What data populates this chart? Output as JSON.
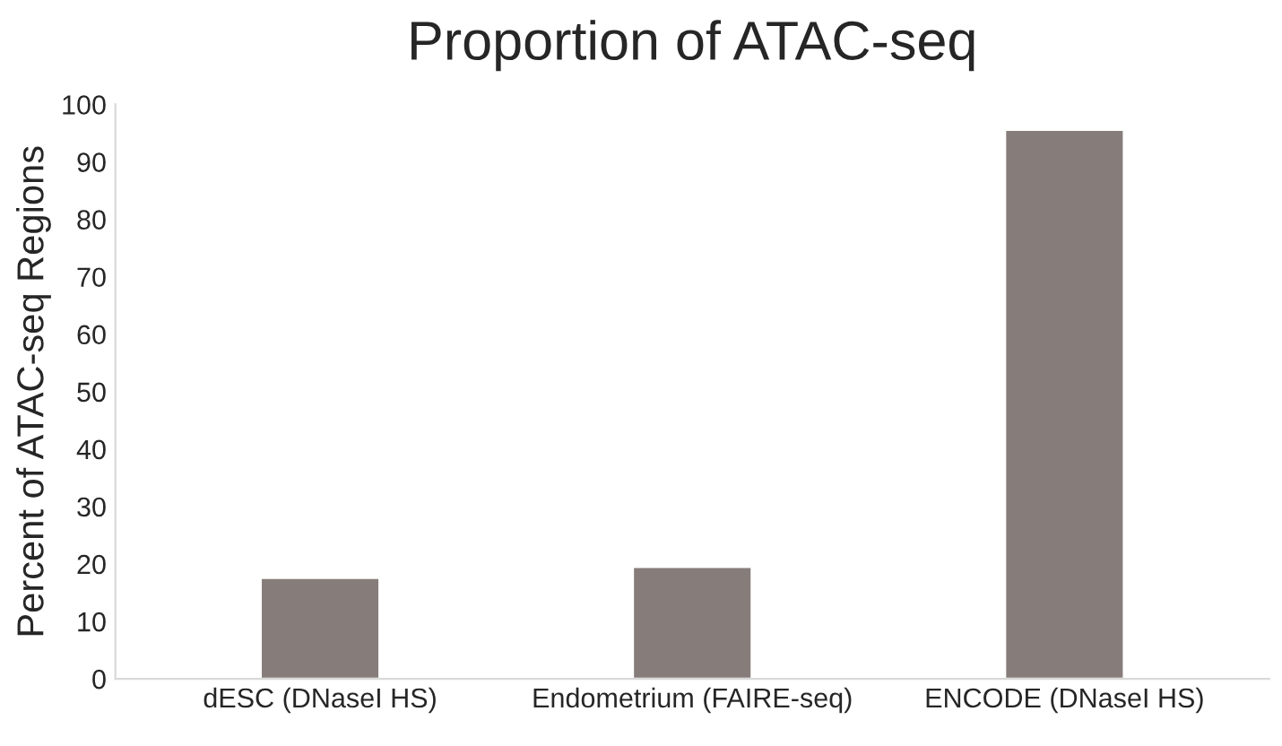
{
  "chart_data": {
    "type": "bar",
    "title": "Proportion of ATAC-seq",
    "ylabel": "Percent of ATAC-seq Regions",
    "categories": [
      "dESC (DNaseI HS)",
      "Endometrium (FAIRE-seq)",
      "ENCODE (DNaseI HS)"
    ],
    "values": [
      17.6,
      19.5,
      95.6
    ],
    "color": "#867d7a",
    "ylim": [
      0,
      100
    ],
    "yticks": [
      0,
      10,
      20,
      30,
      40,
      50,
      60,
      70,
      80,
      90,
      100
    ],
    "grid": false
  }
}
